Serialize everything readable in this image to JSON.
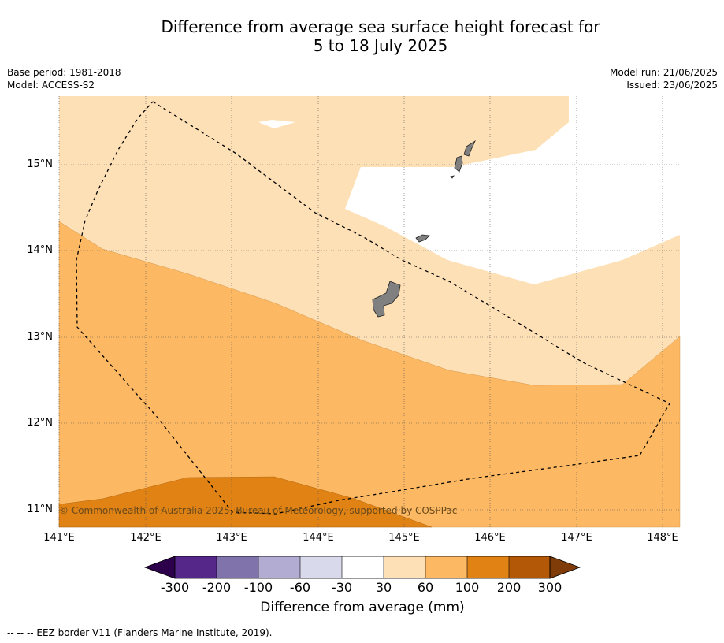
{
  "title_line1": "Difference from average sea surface height forecast for",
  "title_line2": "5 to 18 July 2025",
  "meta_left": [
    "Base period: 1981-2018",
    "Model: ACCESS-S2"
  ],
  "meta_right": [
    "Model run: 21/06/2025",
    "Issued: 23/06/2025"
  ],
  "copyright": "© Commonwealth of Australia 2025, Bureau of Meteorology, supported by COSPPac",
  "map": {
    "lon_range": [
      141.0,
      148.2
    ],
    "lat_range": [
      10.8,
      15.8
    ],
    "lon_ticks": [
      "141°E",
      "142°E",
      "143°E",
      "144°E",
      "145°E",
      "146°E",
      "147°E",
      "148°E"
    ],
    "lat_ticks": [
      "11°N",
      "12°N",
      "13°N",
      "14°N",
      "15°N"
    ],
    "grid": true,
    "eez_border_style": "dashed black"
  },
  "colorbar": {
    "title": "Difference from average (mm)",
    "ticks": [
      "-300",
      "-200",
      "-100",
      "-60",
      "-30",
      "30",
      "60",
      "100",
      "200",
      "300"
    ],
    "colors": [
      "#2d004b",
      "#542788",
      "#8073ac",
      "#b2abd2",
      "#d8daeb",
      "#ffffff",
      "#fee0b6",
      "#fdb863",
      "#e08214",
      "#b35806",
      "#7f3b08"
    ]
  },
  "footer": "--  --  -- EEZ border V11 (Flanders Marine Institute, 2019)."
}
